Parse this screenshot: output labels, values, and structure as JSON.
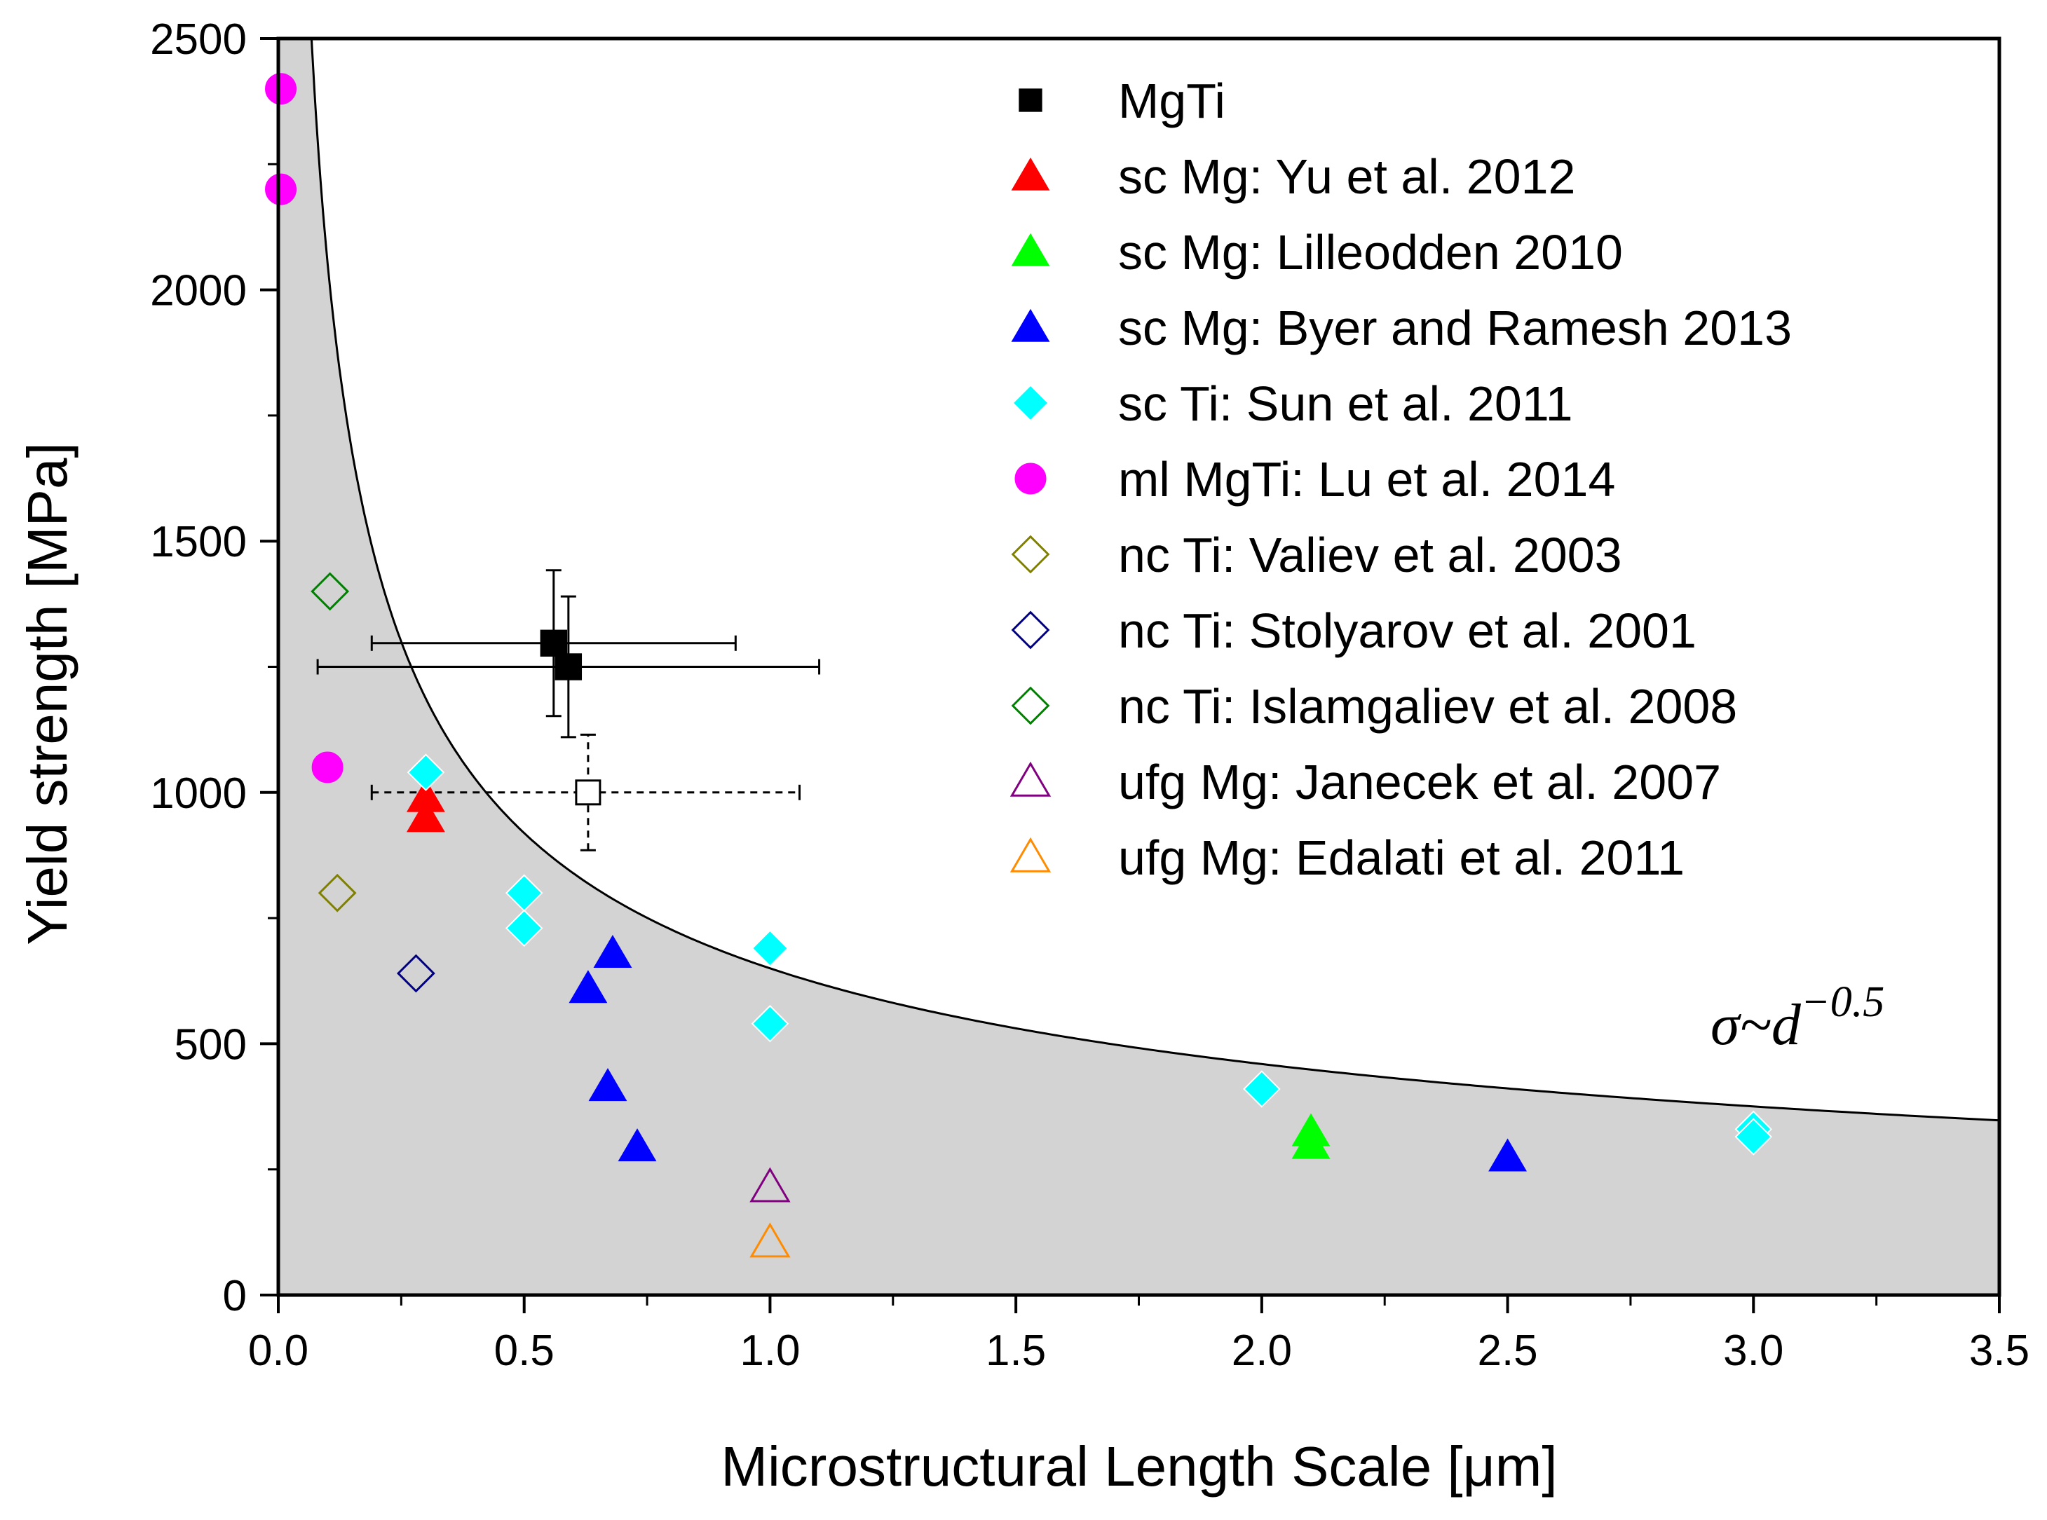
{
  "chart_data": {
    "type": "scatter",
    "title": "",
    "xlabel": "Microstructural Length Scale [μm]",
    "ylabel": "Yield strength [MPa]",
    "xlim": [
      0,
      3.5
    ],
    "ylim": [
      0,
      2500
    ],
    "x_ticks": [
      "0.0",
      "0.5",
      "1.0",
      "1.5",
      "2.0",
      "2.5",
      "3.0",
      "3.5"
    ],
    "y_ticks": [
      "0",
      "500",
      "1000",
      "1500",
      "2000",
      "2500"
    ],
    "grid": false,
    "legend_position": "top-right",
    "annotation": {
      "base": "σ~d",
      "exponent": "−0.5"
    },
    "curve": {
      "name": "σ~d^-0.5",
      "coefficient": 650,
      "exponent": -0.5,
      "fill": "#d3d3d3"
    },
    "series": [
      {
        "name": "MgTi",
        "marker": "square",
        "filled": true,
        "color": "#000000",
        "points": [
          {
            "x": 0.56,
            "y": 1297,
            "xerr": 0.37,
            "yerr": 145
          },
          {
            "x": 0.59,
            "y": 1250,
            "xerr": 0.51,
            "yerr": 140
          }
        ]
      },
      {
        "name": "sc Mg: Yu et al. 2012",
        "marker": "triangle",
        "filled": true,
        "color": "#ff0000",
        "points": [
          {
            "x": 0.3,
            "y": 990
          },
          {
            "x": 0.3,
            "y": 950
          }
        ]
      },
      {
        "name": "sc Mg: Lilleodden 2010",
        "marker": "triangle",
        "filled": true,
        "color": "#00ff00",
        "points": [
          {
            "x": 2.1,
            "y": 325
          },
          {
            "x": 2.1,
            "y": 300
          }
        ]
      },
      {
        "name": "sc Mg: Byer and Ramesh 2013",
        "marker": "triangle",
        "filled": true,
        "color": "#0000ff",
        "points": [
          {
            "x": 0.63,
            "y": 610
          },
          {
            "x": 0.68,
            "y": 680
          },
          {
            "x": 0.67,
            "y": 415
          },
          {
            "x": 0.73,
            "y": 295
          },
          {
            "x": 2.5,
            "y": 275
          }
        ]
      },
      {
        "name": "sc Ti: Sun et al. 2011",
        "marker": "diamond",
        "filled": true,
        "color": "#00ffff",
        "points": [
          {
            "x": 0.3,
            "y": 1040
          },
          {
            "x": 0.5,
            "y": 800
          },
          {
            "x": 0.5,
            "y": 730
          },
          {
            "x": 1.0,
            "y": 690
          },
          {
            "x": 1.0,
            "y": 540
          },
          {
            "x": 2.0,
            "y": 410
          },
          {
            "x": 3.0,
            "y": 330
          },
          {
            "x": 3.0,
            "y": 315
          }
        ]
      },
      {
        "name": "ml MgTi: Lu et al. 2014",
        "marker": "circle",
        "filled": true,
        "color": "#ff00ff",
        "points": [
          {
            "x": 0.005,
            "y": 2400
          },
          {
            "x": 0.005,
            "y": 2200
          },
          {
            "x": 0.1,
            "y": 1050
          }
        ]
      },
      {
        "name": "nc Ti: Valiev et al. 2003",
        "marker": "diamond",
        "filled": false,
        "color": "#808000",
        "points": [
          {
            "x": 0.12,
            "y": 800
          }
        ]
      },
      {
        "name": "nc Ti: Stolyarov et al. 2001",
        "marker": "diamond",
        "filled": false,
        "color": "#000080",
        "points": [
          {
            "x": 0.28,
            "y": 640
          }
        ]
      },
      {
        "name": "nc Ti: Islamgaliev et al. 2008",
        "marker": "diamond",
        "filled": false,
        "color": "#008000",
        "points": [
          {
            "x": 0.105,
            "y": 1400
          }
        ]
      },
      {
        "name": "ufg Mg: Janecek et al. 2007",
        "marker": "triangle",
        "filled": false,
        "color": "#800080",
        "points": [
          {
            "x": 1.0,
            "y": 215
          }
        ]
      },
      {
        "name": "ufg Mg: Edalati et al. 2011",
        "marker": "triangle",
        "filled": false,
        "color": "#ff8c00",
        "points": [
          {
            "x": 1.0,
            "y": 105
          }
        ]
      }
    ],
    "extra_point": {
      "name": "open-square-dashed",
      "marker": "square",
      "filled": false,
      "color": "#000000",
      "x": 0.63,
      "y": 1000,
      "xerr_low": 0.44,
      "xerr_high": 0.43,
      "yerr": 115
    }
  }
}
